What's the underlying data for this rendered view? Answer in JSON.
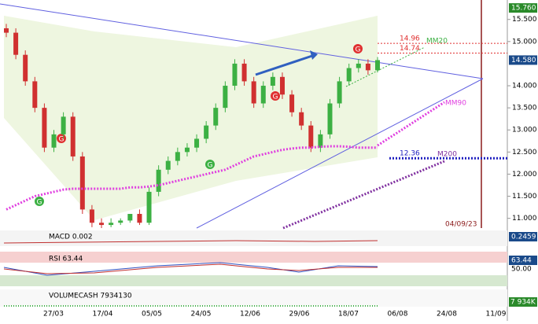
{
  "chart_data": {
    "type": "candlestick",
    "open": [
      15.3,
      15.2,
      14.7,
      14.1,
      13.5,
      12.6,
      12.9,
      13.3,
      12.4,
      11.2,
      10.9,
      10.85,
      10.9,
      10.95,
      11.1,
      10.9,
      11.6,
      12.1,
      12.3,
      12.5,
      12.6,
      12.8,
      13.1,
      13.5,
      14.0,
      14.5,
      14.1,
      13.6,
      14.0,
      14.2,
      13.8,
      13.4,
      13.1,
      12.6,
      12.9,
      13.6,
      14.1,
      14.4,
      14.5,
      14.35
    ],
    "high": [
      15.4,
      15.3,
      14.8,
      14.2,
      13.6,
      13.0,
      13.4,
      13.4,
      12.5,
      11.3,
      11.0,
      11.0,
      11.0,
      11.1,
      11.2,
      11.7,
      12.2,
      12.4,
      12.6,
      12.7,
      12.9,
      13.2,
      13.6,
      14.1,
      14.6,
      14.6,
      14.2,
      14.1,
      14.3,
      14.3,
      13.9,
      13.5,
      13.2,
      13.0,
      13.7,
      14.2,
      14.5,
      14.6,
      14.6,
      14.65
    ],
    "low": [
      15.1,
      14.6,
      14.0,
      13.4,
      12.5,
      12.5,
      12.8,
      12.3,
      11.1,
      10.8,
      10.78,
      10.8,
      10.85,
      10.9,
      10.85,
      10.85,
      11.5,
      12.0,
      12.2,
      12.4,
      12.5,
      12.7,
      13.0,
      13.4,
      13.9,
      14.0,
      13.5,
      13.5,
      13.9,
      13.7,
      13.3,
      13.0,
      12.5,
      12.5,
      12.8,
      13.5,
      14.0,
      14.3,
      14.25,
      14.3
    ],
    "close": [
      15.2,
      14.7,
      14.1,
      13.5,
      12.6,
      12.9,
      13.3,
      12.4,
      11.2,
      10.9,
      10.85,
      10.9,
      10.95,
      11.1,
      10.9,
      11.6,
      12.1,
      12.3,
      12.5,
      12.6,
      12.8,
      13.1,
      13.5,
      14.0,
      14.5,
      14.1,
      13.6,
      14.0,
      14.2,
      13.8,
      13.4,
      13.1,
      12.6,
      12.9,
      13.6,
      14.1,
      14.4,
      14.5,
      14.35,
      14.58
    ],
    "mm90": [
      11.2,
      11.3,
      11.4,
      11.5,
      11.55,
      11.6,
      11.65,
      11.67,
      11.67,
      11.67,
      11.67,
      11.67,
      11.67,
      11.7,
      11.7,
      11.72,
      11.75,
      11.8,
      11.85,
      11.9,
      11.95,
      12.0,
      12.05,
      12.1,
      12.2,
      12.3,
      12.4,
      12.45,
      12.5,
      12.55,
      12.58,
      12.6,
      12.6,
      12.62,
      12.63,
      12.63,
      12.62,
      12.6,
      12.6,
      12.6
    ],
    "ylim": [
      10.78,
      15.94
    ],
    "yticks": [
      {
        "value": 15.5,
        "label": "15.500"
      },
      {
        "value": 15.0,
        "label": "15.000"
      },
      {
        "value": 14.0,
        "label": "14.000"
      },
      {
        "value": 13.5,
        "label": "13.500"
      },
      {
        "value": 13.0,
        "label": "13.000"
      },
      {
        "value": 12.5,
        "label": "12.500"
      },
      {
        "value": 12.0,
        "label": "12.000"
      },
      {
        "value": 11.5,
        "label": "11.500"
      },
      {
        "value": 11.0,
        "label": "11.000"
      }
    ],
    "high_price": {
      "value": 15.76,
      "label": "15.760"
    },
    "last_price": {
      "value": 14.58,
      "label": "14.580"
    },
    "levels": [
      {
        "value": 14.96,
        "label": "14.96",
        "color": "#e03030"
      },
      {
        "value": 14.74,
        "label": "14.74",
        "color": "#e03030"
      },
      {
        "value": 12.36,
        "label": "12.36",
        "color": "#2020c0"
      }
    ],
    "projections": [
      {
        "label": "MM20",
        "color": "#3cb043"
      },
      {
        "label": "MM90",
        "color": "#e040e0"
      },
      {
        "label": "M200",
        "color": "#8030a0"
      }
    ],
    "signals": [
      {
        "label": "G",
        "color": "#e03030"
      },
      {
        "label": "G",
        "color": "#3cb043"
      },
      {
        "label": "G",
        "color": "#3cb043"
      },
      {
        "label": "G",
        "color": "#e03030"
      },
      {
        "label": "G",
        "color": "#e03030"
      }
    ],
    "vline_label": "04/09/23",
    "categories": [
      "27/03",
      "17/04",
      "05/05",
      "24/05",
      "12/06",
      "29/06",
      "18/07",
      "06/08",
      "24/08",
      "11/09"
    ],
    "panels": {
      "macd": {
        "title": "MACD 0.002",
        "value": "0.2459"
      },
      "rsi": {
        "title": "RSI 63.44",
        "value": "63.44",
        "mid": "50.00"
      },
      "volume": {
        "title": "VOLUMECASH 7934130",
        "value": "7 934K"
      }
    }
  }
}
